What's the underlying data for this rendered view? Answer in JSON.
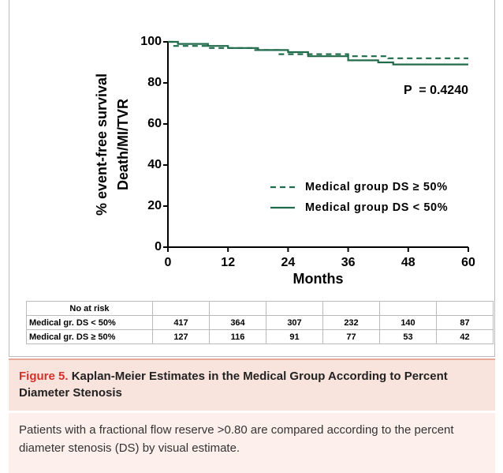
{
  "chart_data": {
    "type": "line",
    "y_label_lines": [
      "% event-free survival",
      "Death/MI/TVR"
    ],
    "x_label": "Months",
    "annotation": "P  = 0.4240",
    "xlim": [
      0,
      60
    ],
    "xticks": [
      0,
      12,
      24,
      36,
      48,
      60
    ],
    "ylim": [
      0,
      100
    ],
    "yticks": [
      0,
      20,
      40,
      60,
      80,
      100
    ],
    "legend": "center right",
    "series": [
      {
        "name": "Medical group DS ≥ 50%",
        "color": "#1f6b4a",
        "dash": true,
        "x": [
          0,
          1,
          1,
          8,
          8,
          17,
          17,
          22,
          22,
          36,
          36,
          44,
          44,
          60
        ],
        "values": [
          100,
          100,
          98,
          98,
          97,
          97,
          96,
          96,
          94,
          94,
          93,
          93,
          92,
          92
        ]
      },
      {
        "name": "Medical group DS < 50%",
        "color": "#1f6b4a",
        "dash": false,
        "x": [
          0,
          2,
          2,
          8,
          8,
          12,
          12,
          18,
          18,
          24,
          24,
          28,
          28,
          36,
          36,
          42,
          42,
          45,
          45,
          60
        ],
        "values": [
          100,
          100,
          99,
          99,
          98,
          98,
          97,
          97,
          96,
          96,
          95,
          95,
          93,
          93,
          91,
          91,
          90,
          90,
          89,
          89
        ]
      }
    ],
    "risk_table": {
      "title": "No at risk",
      "rows": [
        {
          "label": "Medical gr. DS < 50%",
          "values": [
            417,
            364,
            307,
            232,
            140,
            87
          ]
        },
        {
          "label": "Medical gr. DS ≥ 50%",
          "values": [
            127,
            116,
            91,
            77,
            53,
            42
          ]
        }
      ]
    }
  },
  "caption": {
    "label": "Figure 5.",
    "title": "Kaplan-Meier Estimates in the Medical Group According to Percent Diameter Stenosis",
    "text": "Patients with a fractional flow reserve >0.80 are compared according to the percent diameter stenosis (DS) by visual estimate."
  }
}
